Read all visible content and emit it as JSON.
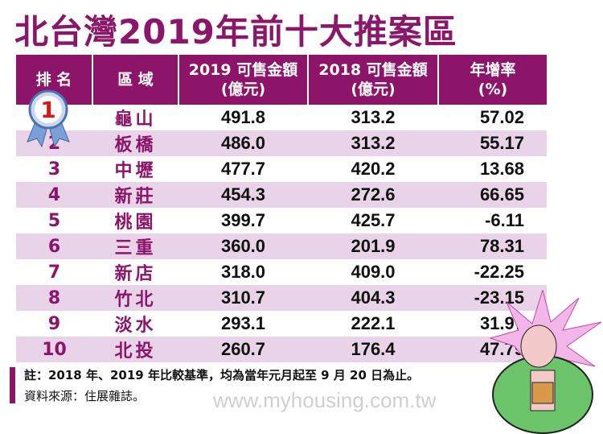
{
  "title": "北台灣2019年前十大推案區",
  "colors": {
    "accent": "#8c1469",
    "row_alt": "#e8d3e8"
  },
  "chart_data": {
    "type": "table",
    "columns": [
      "排 名",
      "區 域",
      "2019 可售金額\n(億元)",
      "2018 可售金額\n(億元)",
      "年增率\n(%)"
    ],
    "rows": [
      [
        "1",
        "龜山",
        "491.8",
        "313.2",
        "57.02"
      ],
      [
        "2",
        "板橋",
        "486.0",
        "313.2",
        "55.17"
      ],
      [
        "3",
        "中壢",
        "477.7",
        "420.2",
        "13.68"
      ],
      [
        "4",
        "新莊",
        "454.3",
        "272.6",
        "66.65"
      ],
      [
        "5",
        "桃園",
        "399.7",
        "425.7",
        "-6.11"
      ],
      [
        "6",
        "三重",
        "360.0",
        "201.9",
        "78.31"
      ],
      [
        "7",
        "新店",
        "318.0",
        "409.0",
        "-22.25"
      ],
      [
        "8",
        "竹北",
        "310.7",
        "404.3",
        "-23.15"
      ],
      [
        "9",
        "淡水",
        "293.1",
        "222.1",
        "31.97"
      ],
      [
        "10",
        "北投",
        "260.7",
        "176.4",
        "47.79"
      ]
    ]
  },
  "note": "註：2018 年、2019 年比較基準，均為當年元月起至 9 月 20 日為止。",
  "source": "資料來源：住展雜誌。",
  "watermark": "www.myhousing.com.tw"
}
